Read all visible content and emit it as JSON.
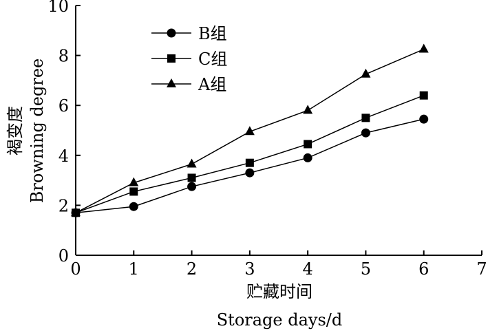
{
  "chart_data": {
    "type": "line",
    "xlabel_cn": "贮藏时间",
    "xlabel_en": "Storage days/d",
    "ylabel_cn": "褐变度",
    "ylabel_en": "Browning degree",
    "xlim": [
      0,
      7
    ],
    "ylim": [
      0,
      10
    ],
    "xticks": [
      "0",
      "1",
      "2",
      "3",
      "4",
      "5",
      "6",
      "7"
    ],
    "yticks": [
      "0",
      "2",
      "4",
      "6",
      "8",
      "10"
    ],
    "grid": false,
    "legend_position": "top-left",
    "x": [
      0,
      1,
      2,
      3,
      4,
      5,
      6
    ],
    "series": [
      {
        "name": "B组",
        "marker": "circle",
        "values": [
          1.7,
          1.95,
          2.75,
          3.3,
          3.9,
          4.9,
          5.45
        ]
      },
      {
        "name": "C组",
        "marker": "square",
        "values": [
          1.7,
          2.55,
          3.1,
          3.7,
          4.45,
          5.5,
          6.4
        ]
      },
      {
        "name": "A组",
        "marker": "triangle",
        "values": [
          1.7,
          2.9,
          3.65,
          4.95,
          5.8,
          7.25,
          8.25
        ]
      }
    ]
  }
}
